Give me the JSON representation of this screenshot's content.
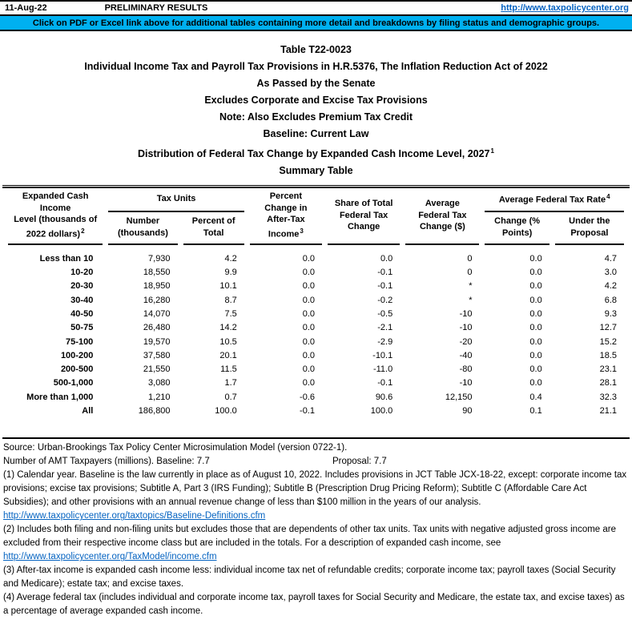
{
  "colors": {
    "banner_bg": "#00B0F0",
    "link_blue": "#0563C1",
    "rule_black": "#000000"
  },
  "topbar": {
    "date": "11-Aug-22",
    "status": "PRELIMINARY RESULTS",
    "link": "http://www.taxpolicycenter.org"
  },
  "banner": {
    "text": "Click on PDF or Excel link above for additional tables containing more detail and breakdowns by filing status and demographic groups."
  },
  "title": {
    "lines": [
      "Table T22-0023",
      "Individual Income Tax and Payroll Tax Provisions in H.R.5376, The Inflation Reduction Act of 2022",
      "As Passed by the Senate",
      "Excludes Corporate and Excise Tax Provisions",
      "Note: Also Excludes Premium Tax Credit",
      "Baseline: Current Law"
    ],
    "distribution_line": "Distribution of Federal Tax Change by Expanded Cash Income Level, 2027",
    "distribution_sup": "1",
    "summary_line": "Summary Table"
  },
  "table": {
    "headers": {
      "income_level": [
        "Expanded Cash Income",
        "Level (thousands of",
        "2022 dollars)"
      ],
      "income_level_sup": "2",
      "tax_units_group": "Tax Units",
      "number": [
        "Number",
        "(thousands)"
      ],
      "percent_of_total": [
        "Percent of",
        "Total"
      ],
      "pct_change_ati": [
        "Percent",
        "Change in",
        "After-Tax",
        "Income"
      ],
      "pct_change_ati_sup": "3",
      "share_change": [
        "Share of Total",
        "Federal Tax",
        "Change"
      ],
      "avg_change": [
        "Average",
        "Federal Tax",
        "Change ($)"
      ],
      "avg_rate_group": "Average Federal Tax Rate",
      "avg_rate_group_sup": "4",
      "rate_change": [
        "Change (%",
        "Points)"
      ],
      "rate_under": [
        "Under the",
        "Proposal"
      ]
    },
    "rows": [
      {
        "label": "Less than 10",
        "cells": [
          "7,930",
          "4.2",
          "0.0",
          "0.0",
          "0",
          "0.0",
          "4.7"
        ]
      },
      {
        "label": "10-20",
        "cells": [
          "18,550",
          "9.9",
          "0.0",
          "-0.1",
          "0",
          "0.0",
          "3.0"
        ]
      },
      {
        "label": "20-30",
        "cells": [
          "18,950",
          "10.1",
          "0.0",
          "-0.1",
          "*",
          "0.0",
          "4.2"
        ]
      },
      {
        "label": "30-40",
        "cells": [
          "16,280",
          "8.7",
          "0.0",
          "-0.2",
          "*",
          "0.0",
          "6.8"
        ]
      },
      {
        "label": "40-50",
        "cells": [
          "14,070",
          "7.5",
          "0.0",
          "-0.5",
          "-10",
          "0.0",
          "9.3"
        ]
      },
      {
        "label": "50-75",
        "cells": [
          "26,480",
          "14.2",
          "0.0",
          "-2.1",
          "-10",
          "0.0",
          "12.7"
        ]
      },
      {
        "label": "75-100",
        "cells": [
          "19,570",
          "10.5",
          "0.0",
          "-2.9",
          "-20",
          "0.0",
          "15.2"
        ]
      },
      {
        "label": "100-200",
        "cells": [
          "37,580",
          "20.1",
          "0.0",
          "-10.1",
          "-40",
          "0.0",
          "18.5"
        ]
      },
      {
        "label": "200-500",
        "cells": [
          "21,550",
          "11.5",
          "0.0",
          "-11.0",
          "-80",
          "0.0",
          "23.1"
        ]
      },
      {
        "label": "500-1,000",
        "cells": [
          "3,080",
          "1.7",
          "0.0",
          "-0.1",
          "-10",
          "0.0",
          "28.1"
        ]
      },
      {
        "label": "More than 1,000",
        "cells": [
          "1,210",
          "0.7",
          "-0.6",
          "90.6",
          "12,150",
          "0.4",
          "32.3"
        ]
      },
      {
        "label": "All",
        "cells": [
          "186,800",
          "100.0",
          "-0.1",
          "100.0",
          "90",
          "0.1",
          "21.1"
        ]
      }
    ]
  },
  "footer": {
    "source": "Source: Urban-Brookings Tax Policy Center Microsimulation Model (version 0722-1).",
    "amt_left": "Number of AMT Taxpayers (millions).  Baseline: 7.7",
    "amt_right": "Proposal: 7.7",
    "note1": "(1) Calendar year. Baseline is the law currently in place as of August 10, 2022. Includes provisions in JCT Table JCX-18-22, except: corporate income tax provisions; excise tax provisions; Subtitle A, Part 3 (IRS Funding); Subtitle B (Prescription Drug Pricing Reform); Subtitle C (Affordable Care Act Subsidies);  and other provisions with an annual revenue change of less than $100 million in the years of our analysis.",
    "link1": "http://www.taxpolicycenter.org/taxtopics/Baseline-Definitions.cfm",
    "note2": "(2) Includes both filing and non-filing units but excludes those that are dependents of other tax units. Tax units with negative adjusted gross income are excluded from their respective income class but are included in the totals. For a description of expanded cash income, see",
    "link2": "http://www.taxpolicycenter.org/TaxModel/income.cfm",
    "note3": "(3) After-tax income is expanded cash income less: individual income tax net of refundable credits; corporate income tax; payroll taxes (Social Security and Medicare); estate tax; and excise taxes.",
    "note4": "(4) Average federal tax (includes individual and corporate income tax, payroll taxes for Social Security and Medicare, the estate tax, and excise taxes) as a percentage of average expanded cash income."
  }
}
